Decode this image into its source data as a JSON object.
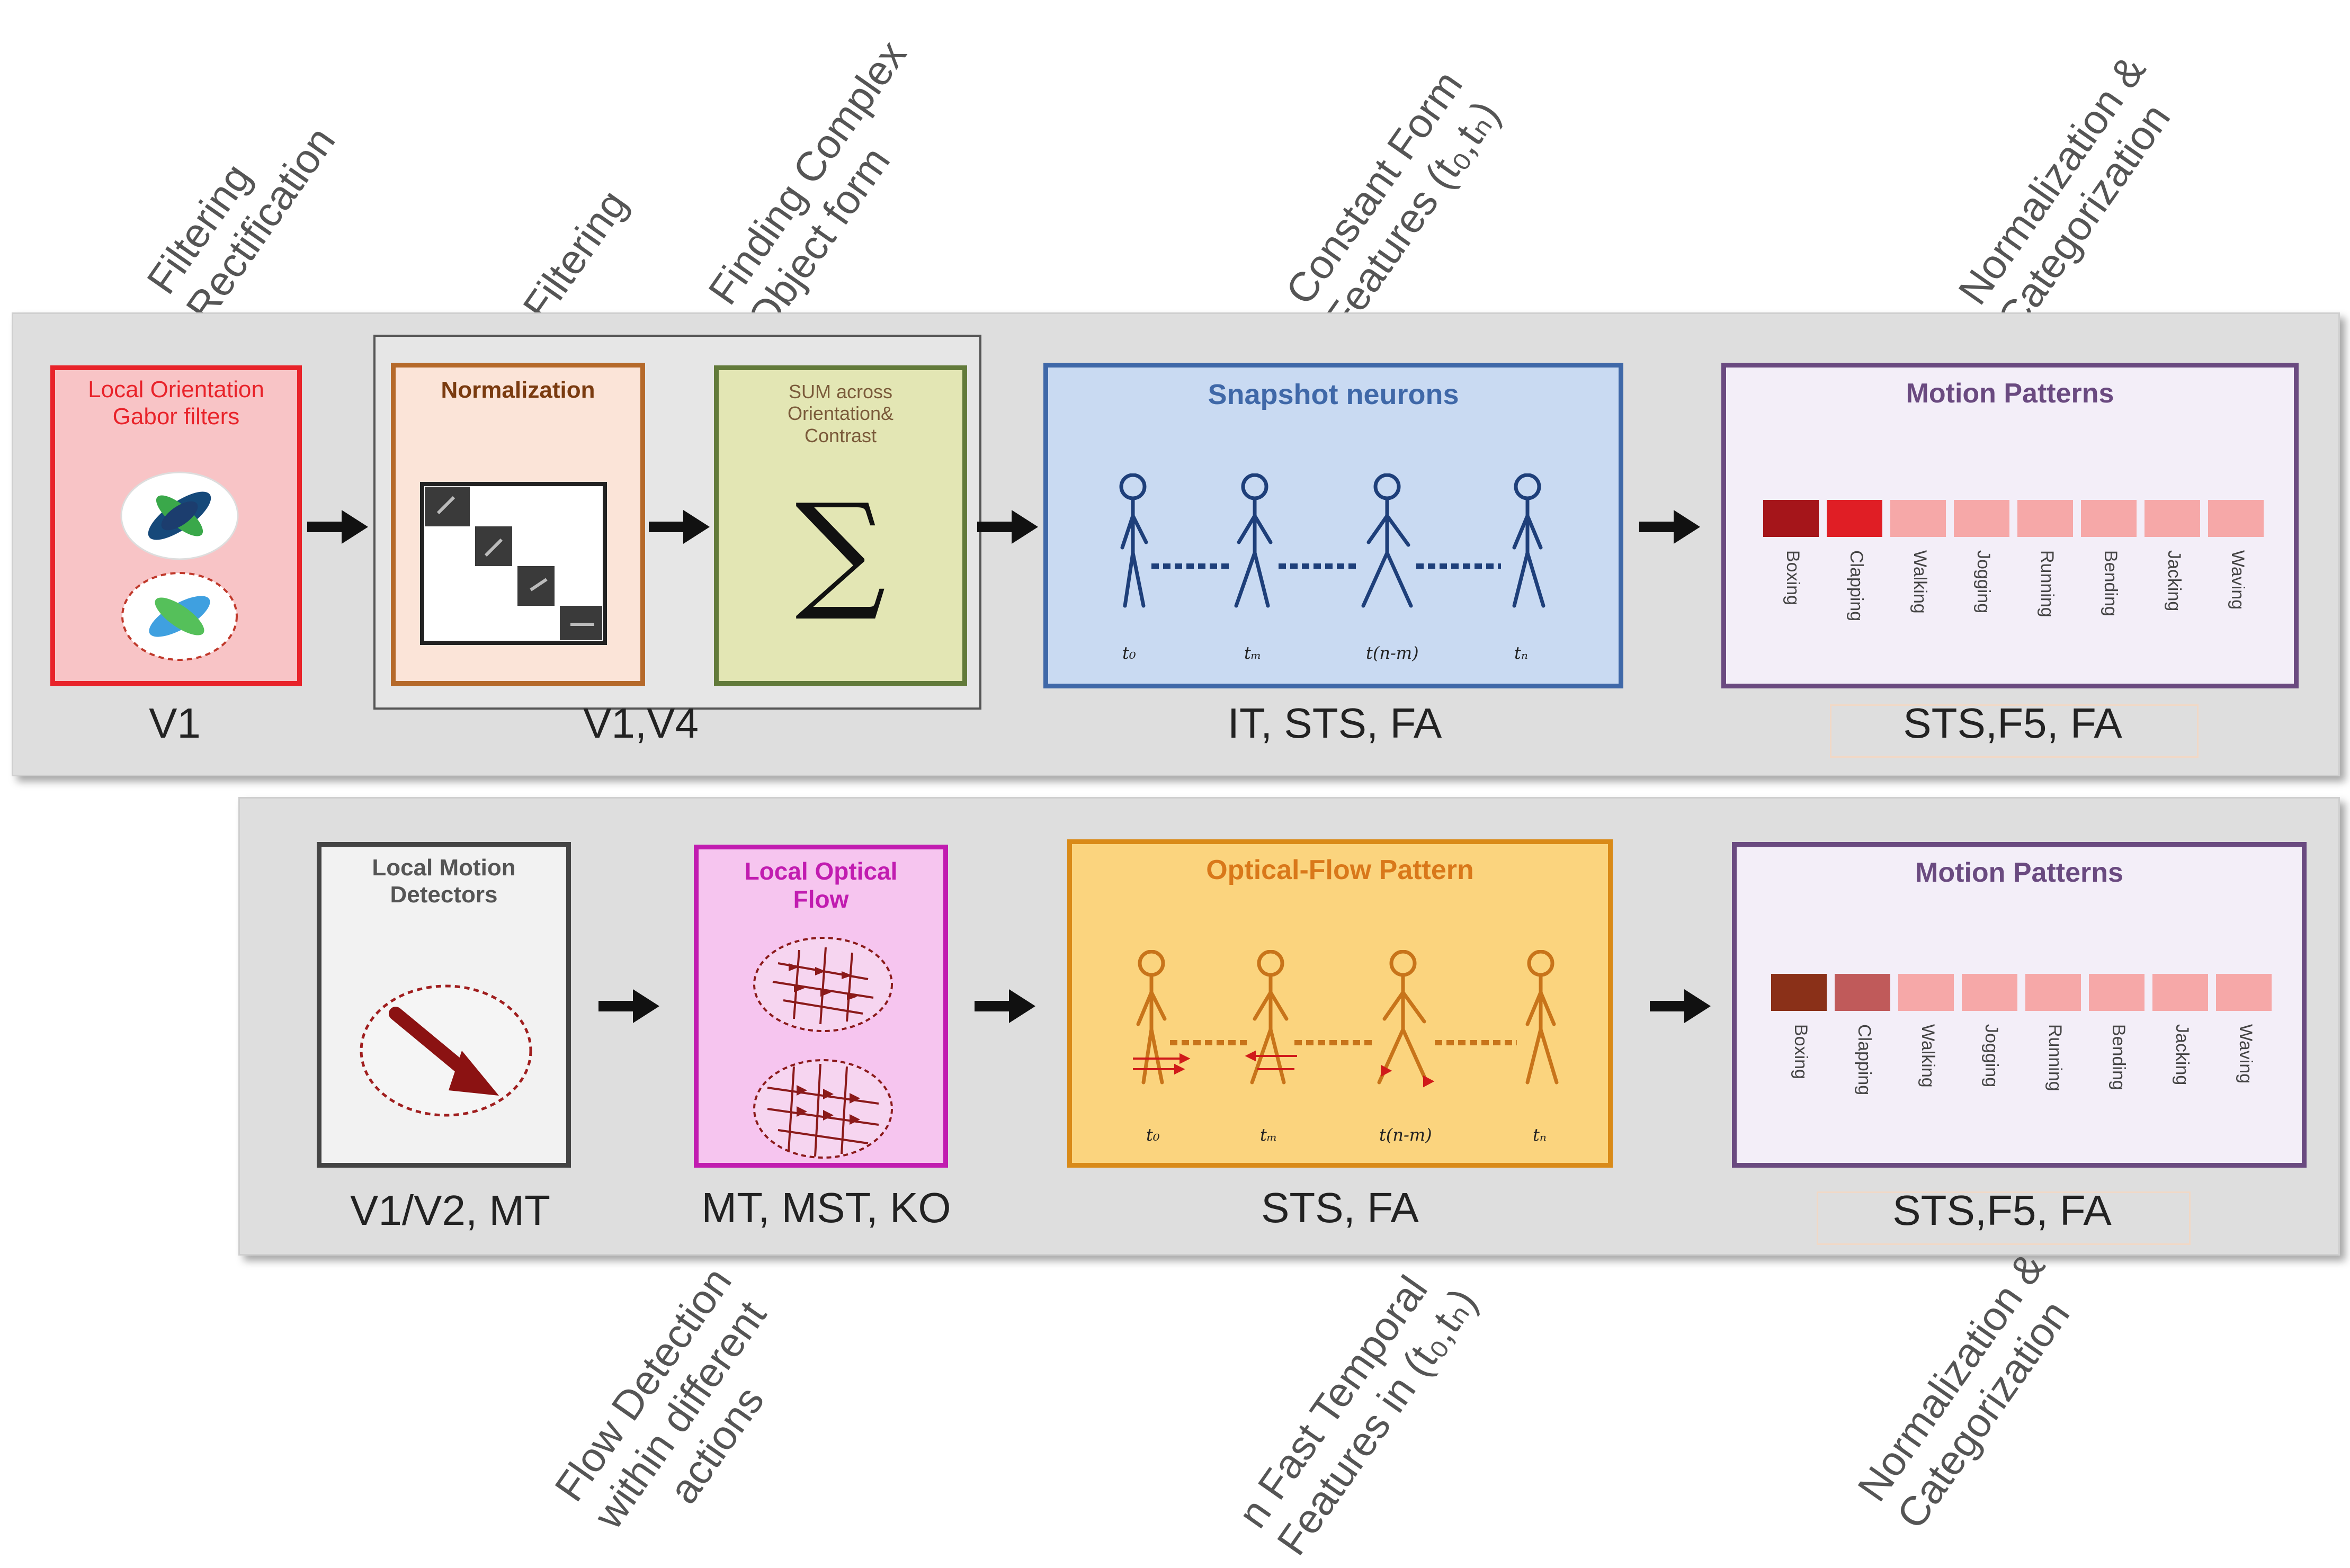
{
  "top_labels": {
    "filtering_rectification": [
      "Filtering",
      "Rectification"
    ],
    "filtering": "Filtering",
    "finding_complex": [
      "Finding Complex",
      "Object form"
    ],
    "constant_form": [
      "Constant Form",
      "Features (t₀,tₙ)"
    ],
    "normalization_top": [
      "Normalization &",
      "Categorization"
    ]
  },
  "bottom_labels": {
    "flow_detection": [
      "Flow Detection",
      "within different",
      "actions"
    ],
    "fast_temporal": [
      "n Fast Temporal",
      "Features in (t₀,tₙ)"
    ],
    "normalization_bottom": [
      "Normalization &",
      "Categorization"
    ]
  },
  "row1": {
    "local_orientation": "Local Orientation\nGabor filters",
    "normalization": "Normalization",
    "sum": "SUM across\nOrientation&\nContrast",
    "sigma": "∑",
    "snapshot": "Snapshot neurons",
    "motion_patterns": "Motion Patterns",
    "captions": {
      "v1": "V1",
      "v1v4": "V1,V4",
      "it": "IT, STS, FA",
      "sts": "STS,F5, FA"
    }
  },
  "row2": {
    "local_motion": "Local Motion\nDetectors",
    "local_optical": "Local Optical\nFlow",
    "optical_pattern": "Optical-Flow Pattern",
    "motion_patterns": "Motion Patterns",
    "captions": {
      "v1v2": "V1/V2, MT",
      "mt": "MT, MST, KO",
      "sts": "STS, FA",
      "sts2": "STS,F5, FA"
    }
  },
  "frames": [
    "t₀",
    "tₘ",
    "t(n-m)",
    "tₙ"
  ],
  "categories": [
    "Boxing",
    "Clapping",
    "Walking",
    "Jogging",
    "Running",
    "Bending",
    "Jacking",
    "Waving"
  ],
  "colors": {
    "red_box": "#e8232a",
    "brown_box": "#b5692a",
    "olive_box": "#627a3a",
    "blue_box": "#3f68a8",
    "purple_box": "#6a4a80",
    "magenta_box": "#c11cb0",
    "orange_box": "#d98a18",
    "gray_box": "#444444",
    "top_activation": [
      "#a5151a",
      "#e01e25",
      "#f6a8a8",
      "#f6a8a8",
      "#f6a8a8",
      "#f6a8a8",
      "#f6a8a8",
      "#f6a8a8"
    ],
    "bottom_activation": [
      "#8a3018",
      "#c05a5a",
      "#f6a8a8",
      "#f6a8a8",
      "#f6a8a8",
      "#f6a8a8",
      "#f6a8a8",
      "#f6a8a8"
    ]
  }
}
